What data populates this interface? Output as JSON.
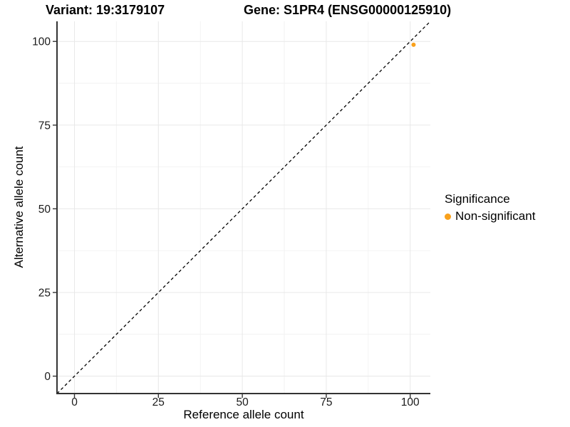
{
  "chart_data": {
    "type": "scatter",
    "title_variant": "Variant: 19:3179107",
    "title_gene": "Gene: S1PR4 (ENSG00000125910)",
    "xlabel": "Reference allele count",
    "ylabel": "Alternative allele count",
    "xlim": [
      -5.2,
      106
    ],
    "ylim": [
      -5.2,
      106
    ],
    "x_ticks": [
      0,
      25,
      50,
      75,
      100
    ],
    "y_ticks": [
      0,
      25,
      50,
      75,
      100
    ],
    "x_minor_ticks": [
      12.5,
      37.5,
      62.5,
      87.5
    ],
    "y_minor_ticks": [
      12.5,
      37.5,
      62.5,
      87.5
    ],
    "grid": true,
    "points": [
      {
        "x": 101,
        "y": 99,
        "significance": "Non-significant",
        "color": "#F9A11C"
      }
    ],
    "identity_line": {
      "style": "dashed",
      "slope": 1,
      "intercept": 0,
      "color": "#000000"
    },
    "legend": {
      "title": "Significance",
      "position": "right",
      "entries": [
        {
          "label": "Non-significant",
          "color": "#F9A11C",
          "marker": "circle"
        }
      ]
    },
    "colors": {
      "background": "#FFFFFF",
      "grid_major": "#E8E8E8",
      "grid_minor": "#F2F2F2",
      "axis_line": "#333333",
      "tick": "#333333",
      "tick_label": "#1A1A1A",
      "text": "#000000"
    }
  }
}
